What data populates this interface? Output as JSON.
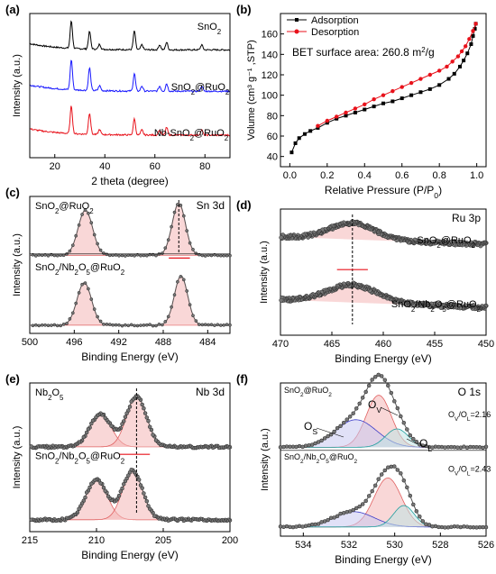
{
  "colors": {
    "black": "#000000",
    "blue": "#1a1aff",
    "red": "#e8121b",
    "peak_fill": "#f4b6b6",
    "peak_line": "#e06060",
    "teal": "#1f9e9e",
    "navy": "#3b3bc8",
    "gray": "#555555"
  },
  "chart_data": [
    {
      "id": "a",
      "panel_label": "(a)",
      "type": "line",
      "xlabel": "2 theta (degree)",
      "ylabel": "Intensity (a.u.)",
      "xlim": [
        10,
        90
      ],
      "xticks": [
        "20",
        "40",
        "60",
        "80"
      ],
      "series": [
        {
          "name": "SnO2",
          "label_base": "SnO",
          "label_sub": "2",
          "label_rest": "",
          "color": "black",
          "baseline": 0.86,
          "peaks": [
            [
              26.6,
              0.22
            ],
            [
              33.9,
              0.14
            ],
            [
              37.9,
              0.04
            ],
            [
              51.8,
              0.15
            ],
            [
              54.8,
              0.04
            ],
            [
              61.9,
              0.04
            ],
            [
              64.7,
              0.06
            ],
            [
              78.7,
              0.04
            ]
          ]
        },
        {
          "name": "SnO2@RuO2",
          "label_base": "SnO",
          "label_sub": "2",
          "label_rest": "@RuO",
          "label_sub2": "2",
          "color": "blue",
          "baseline": 0.53,
          "peaks": [
            [
              26.6,
              0.24
            ],
            [
              33.9,
              0.18
            ],
            [
              37.9,
              0.04
            ],
            [
              51.8,
              0.14
            ],
            [
              54.8,
              0.04
            ],
            [
              61.9,
              0.04
            ],
            [
              64.7,
              0.06
            ],
            [
              78.7,
              0.04
            ]
          ]
        },
        {
          "name": "Nb-SnO2@RuO2",
          "label_base": "Nb-SnO",
          "label_sub": "2",
          "label_rest": "@RuO",
          "label_sub2": "2",
          "color": "red",
          "baseline": 0.18,
          "peaks": [
            [
              26.6,
              0.22
            ],
            [
              33.9,
              0.17
            ],
            [
              37.9,
              0.04
            ],
            [
              51.8,
              0.13
            ],
            [
              54.8,
              0.04
            ],
            [
              61.9,
              0.04
            ],
            [
              64.7,
              0.06
            ],
            [
              78.7,
              0.04
            ]
          ]
        }
      ]
    },
    {
      "id": "b",
      "panel_label": "(b)",
      "type": "line",
      "xlabel": "Relative Pressure (P/P",
      "xlabel_sub": "0",
      "xlabel_end": ")",
      "ylabel": "Volume (cm",
      "ylabel_full": "Volume (cm³ g⁻¹ ,STP)",
      "xlim": [
        -0.05,
        1.05
      ],
      "ylim": [
        30,
        180
      ],
      "xticks": [
        "0.0",
        "0.2",
        "0.4",
        "0.6",
        "0.8",
        "1.0"
      ],
      "yticks": [
        "40",
        "60",
        "80",
        "100",
        "120",
        "140",
        "160"
      ],
      "annotation": "BET surface area:  260.8 m",
      "annotation_sup": "2",
      "annotation_end": "/g",
      "legend": "top-left",
      "adsorption": [
        [
          0.01,
          44
        ],
        [
          0.03,
          53
        ],
        [
          0.05,
          58
        ],
        [
          0.08,
          62
        ],
        [
          0.11,
          65
        ],
        [
          0.15,
          68
        ],
        [
          0.2,
          73
        ],
        [
          0.25,
          77
        ],
        [
          0.3,
          80
        ],
        [
          0.35,
          83
        ],
        [
          0.4,
          86
        ],
        [
          0.45,
          89
        ],
        [
          0.5,
          92
        ],
        [
          0.55,
          94
        ],
        [
          0.6,
          97
        ],
        [
          0.65,
          100
        ],
        [
          0.7,
          103
        ],
        [
          0.75,
          106
        ],
        [
          0.8,
          110
        ],
        [
          0.85,
          116
        ],
        [
          0.88,
          121
        ],
        [
          0.91,
          128
        ],
        [
          0.93,
          134
        ],
        [
          0.95,
          141
        ],
        [
          0.97,
          150
        ],
        [
          0.98,
          158
        ],
        [
          0.99,
          165
        ],
        [
          0.995,
          170
        ]
      ],
      "desorption": [
        [
          0.995,
          170
        ],
        [
          0.98,
          163
        ],
        [
          0.96,
          155
        ],
        [
          0.94,
          148
        ],
        [
          0.92,
          143
        ],
        [
          0.9,
          138
        ],
        [
          0.87,
          133
        ],
        [
          0.84,
          128
        ],
        [
          0.8,
          124
        ],
        [
          0.75,
          120
        ],
        [
          0.7,
          116
        ],
        [
          0.65,
          112
        ],
        [
          0.6,
          108
        ],
        [
          0.55,
          104
        ],
        [
          0.5,
          100
        ],
        [
          0.45,
          96
        ],
        [
          0.4,
          91
        ],
        [
          0.35,
          87
        ],
        [
          0.3,
          83
        ],
        [
          0.25,
          79
        ],
        [
          0.2,
          75
        ],
        [
          0.15,
          70
        ]
      ],
      "series_names": [
        "Adsorption",
        "Desorption"
      ]
    },
    {
      "id": "c",
      "panel_label": "(c)",
      "type": "line",
      "title": "Sn 3d",
      "xlabel": "Binding Energy (eV)",
      "ylabel": "Intensity (a.u.)",
      "xlim": [
        500,
        482
      ],
      "xticks": [
        "500",
        "496",
        "492",
        "488",
        "484"
      ],
      "spectra": [
        {
          "label": "SnO2@RuO2",
          "baseline": 0.57,
          "peaks": [
            [
              495.0,
              0.33,
              0.65
            ],
            [
              486.6,
              0.38,
              0.6
            ]
          ]
        },
        {
          "label": "SnO2/Nb2O5@RuO2",
          "baseline": 0.06,
          "peaks": [
            [
              495.1,
              0.31,
              0.65
            ],
            [
              486.4,
              0.36,
              0.6
            ]
          ]
        }
      ],
      "label1": [
        "SnO",
        "2",
        "@RuO",
        "2"
      ],
      "label2": [
        "SnO",
        "2",
        "/Nb",
        "2",
        "O",
        "5",
        "@RuO",
        "2"
      ]
    },
    {
      "id": "d",
      "panel_label": "(d)",
      "type": "line",
      "title": "Ru 3p",
      "xlabel": "Binding Energy (eV)",
      "ylabel": "Intensity (a.u.)",
      "xlim": [
        470,
        450
      ],
      "xticks": [
        "470",
        "465",
        "460",
        "455",
        "450"
      ],
      "spectra": [
        {
          "label": "SnO2@RuO2",
          "baseline": 0.72,
          "peaks": [
            [
              463.0,
              0.13,
              2.2
            ]
          ],
          "slope": 0.06
        },
        {
          "label": "SnO2/Nb2O5@RuO2",
          "baseline": 0.22,
          "peaks": [
            [
              463.0,
              0.14,
              2.4
            ]
          ],
          "slope": 0.06
        }
      ],
      "label1": [
        "SnO",
        "2",
        "@RuO",
        "2"
      ],
      "label2": [
        "SnO",
        "2",
        "/Nb",
        "2",
        "O",
        "5",
        "@RuO",
        "2"
      ]
    },
    {
      "id": "e",
      "panel_label": "(e)",
      "type": "line",
      "title": "Nb 3d",
      "xlabel": "Binding Energy (eV)",
      "ylabel": "Intensity (a.u.)",
      "xlim": [
        215,
        200
      ],
      "xticks": [
        "215",
        "210",
        "205",
        "200"
      ],
      "spectra": [
        {
          "label": "Nb2O5",
          "baseline": 0.57,
          "peaks": [
            [
              209.7,
              0.22,
              0.8
            ],
            [
              207.0,
              0.34,
              0.75
            ]
          ]
        },
        {
          "label": "SnO2/Nb2O5@RuO2",
          "baseline": 0.08,
          "peaks": [
            [
              210.0,
              0.27,
              0.8
            ],
            [
              207.3,
              0.33,
              0.75
            ]
          ]
        }
      ],
      "label1": [
        "Nb",
        "2",
        "O",
        "5"
      ],
      "label2": [
        "SnO",
        "2",
        "/Nb",
        "2",
        "O",
        "5",
        "@RuO",
        "2"
      ]
    },
    {
      "id": "f",
      "panel_label": "(f)",
      "type": "line",
      "title": "O 1s",
      "xlabel": "Binding Energy (eV)",
      "ylabel": "Intensity (a.u.)",
      "xlim": [
        535,
        526
      ],
      "xticks": [
        "534",
        "532",
        "530",
        "528",
        "526"
      ],
      "ratio1": "O",
      "ratio1_rest": "=2.16",
      "ratio2": "O",
      "ratio2_rest": "=2.43",
      "peak_labels": {
        "ov": "O",
        "ov_sub": "V",
        "os": "O",
        "os_sub": "S",
        "ol": "O",
        "ol_sub": "L"
      },
      "spectra": [
        {
          "label": "SnO2@RuO2",
          "baseline": 0.58,
          "components": [
            [
              530.7,
              0.34,
              0.55,
              "red"
            ],
            [
              531.7,
              0.18,
              0.9,
              "blue"
            ],
            [
              529.9,
              0.12,
              0.5,
              "teal"
            ]
          ]
        },
        {
          "label": "SnO2/Nb2O5@RuO2",
          "baseline": 0.06,
          "components": [
            [
              530.3,
              0.32,
              0.6,
              "red"
            ],
            [
              531.8,
              0.1,
              0.9,
              "blue"
            ],
            [
              529.6,
              0.14,
              0.45,
              "teal"
            ]
          ]
        }
      ],
      "label1": [
        "SnO",
        "2",
        "@RuO",
        "2"
      ],
      "label2": [
        "SnO",
        "2",
        "/Nb",
        "2",
        "O",
        "5",
        "@RuO",
        "2"
      ]
    }
  ]
}
